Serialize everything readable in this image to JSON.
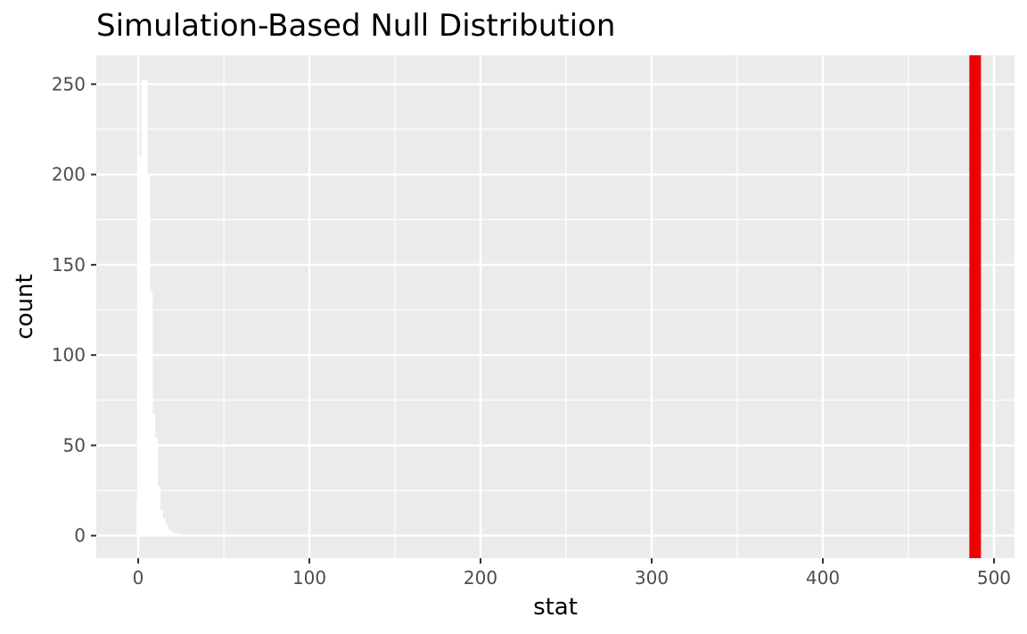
{
  "chart_data": {
    "type": "bar",
    "title": "Simulation-Based Null Distribution",
    "xlabel": "stat",
    "ylabel": "count",
    "xlim": [
      -24.5,
      512
    ],
    "ylim": [
      -12.5,
      266
    ],
    "x_ticks": [
      0,
      100,
      200,
      300,
      400,
      500
    ],
    "x_tick_labels": [
      "0",
      "100",
      "200",
      "300",
      "400",
      "500"
    ],
    "y_ticks": [
      0,
      50,
      100,
      150,
      200,
      250
    ],
    "y_tick_labels": [
      "0",
      "50",
      "100",
      "150",
      "200",
      "250"
    ],
    "grid": true,
    "histogram": {
      "bin_width": 1.5,
      "bar_fill": "#ffffff",
      "bin_centers": [
        0,
        1.5,
        3,
        4.5,
        6,
        7.5,
        9,
        10.5,
        12,
        13.5,
        15,
        16.5,
        18,
        19.5,
        21,
        22.5,
        24
      ],
      "counts": [
        20,
        210,
        252,
        252,
        200,
        135,
        67,
        54,
        27,
        14,
        9,
        6,
        3,
        2,
        1,
        1,
        1
      ]
    },
    "reference_line": {
      "x": 489,
      "color": "#ee0000"
    },
    "colors": {
      "panel_background": "#ebebeb",
      "grid_line": "#ffffff",
      "axis_tick": "#333333"
    }
  }
}
